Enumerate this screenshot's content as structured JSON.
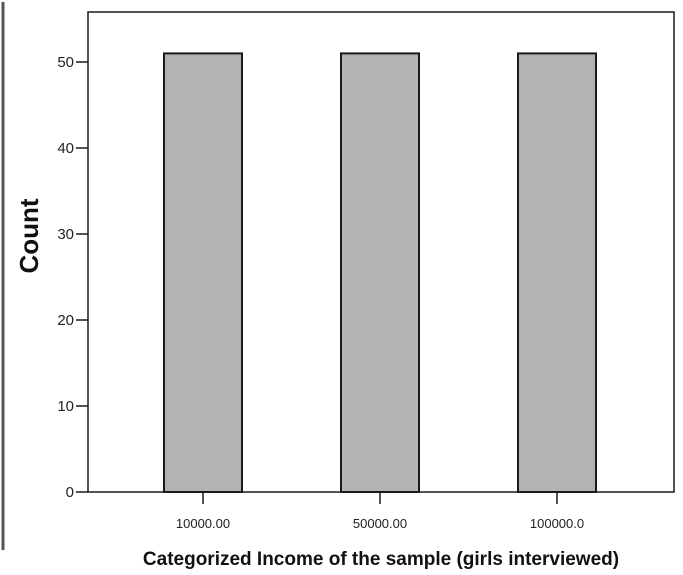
{
  "chart_data": {
    "type": "bar",
    "categories": [
      "10000.00",
      "50000.00",
      "100000.0"
    ],
    "values": [
      51,
      51,
      51
    ],
    "title": "",
    "xlabel": "Categorized Income of the sample (girls interviewed)",
    "ylabel": "Count",
    "ylim": [
      0,
      55
    ],
    "yticks": [
      0,
      10,
      20,
      30,
      40,
      50
    ],
    "grid": false,
    "legend": "none",
    "colors": {
      "bar_fill": "#b3b3b3",
      "bar_stroke": "#1a1a1a",
      "axis": "#1a1a1a",
      "background": "#ffffff"
    }
  }
}
